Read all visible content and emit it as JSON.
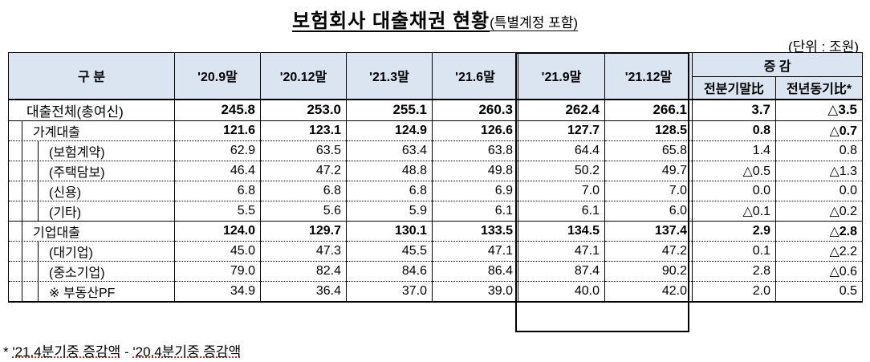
{
  "title": {
    "main": "보험회사 대출채권 현황",
    "sub": "(특별계정 포함)"
  },
  "unit": "(단위 : 조원)",
  "header": {
    "category": "구 분",
    "periods": [
      "'20.9말",
      "'20.12말",
      "'21.3말",
      "'21.6말",
      "'21.9말",
      "'21.12말"
    ],
    "change_group": "증 감",
    "change_cols": [
      "전분기말比",
      "전년동기比*"
    ]
  },
  "rows": [
    {
      "label": "대출전체(총여신)",
      "values": [
        "245.8",
        "253.0",
        "255.1",
        "260.3",
        "262.4",
        "266.1",
        "3.7",
        "△3.5"
      ]
    },
    {
      "label": "가계대출",
      "values": [
        "121.6",
        "123.1",
        "124.9",
        "126.6",
        "127.7",
        "128.5",
        "0.8",
        "△0.7"
      ]
    },
    {
      "label": "(보험계약)",
      "values": [
        "62.9",
        "63.5",
        "63.4",
        "63.8",
        "64.4",
        "65.8",
        "1.4",
        "0.8"
      ]
    },
    {
      "label": "(주택담보)",
      "values": [
        "46.4",
        "47.2",
        "48.8",
        "49.8",
        "50.2",
        "49.7",
        "△0.5",
        "△1.3"
      ]
    },
    {
      "label": "(신용)",
      "values": [
        "6.8",
        "6.8",
        "6.8",
        "6.9",
        "7.0",
        "7.0",
        "0.0",
        "0.0"
      ]
    },
    {
      "label": "(기타)",
      "values": [
        "5.5",
        "5.6",
        "5.9",
        "6.1",
        "6.1",
        "6.0",
        "△0.1",
        "△0.2"
      ]
    },
    {
      "label": "기업대출",
      "values": [
        "124.0",
        "129.7",
        "130.1",
        "133.5",
        "134.5",
        "137.4",
        "2.9",
        "△2.8"
      ]
    },
    {
      "label": "(대기업)",
      "values": [
        "45.0",
        "47.3",
        "45.5",
        "47.1",
        "47.1",
        "47.2",
        "0.1",
        "△2.2"
      ]
    },
    {
      "label": "(중소기업)",
      "values": [
        "79.0",
        "82.4",
        "84.6",
        "86.4",
        "87.4",
        "90.2",
        "2.8",
        "△0.6"
      ]
    },
    {
      "label": "※ 부동산PF",
      "values": [
        "34.9",
        "36.4",
        "37.0",
        "39.0",
        "40.0",
        "42.0",
        "2.0",
        "0.5"
      ]
    }
  ],
  "footnote": {
    "star": "*",
    "text1": "'21.4분기중 증감액",
    "sep": " - ",
    "text2": "'20.4분기중 증감액"
  }
}
